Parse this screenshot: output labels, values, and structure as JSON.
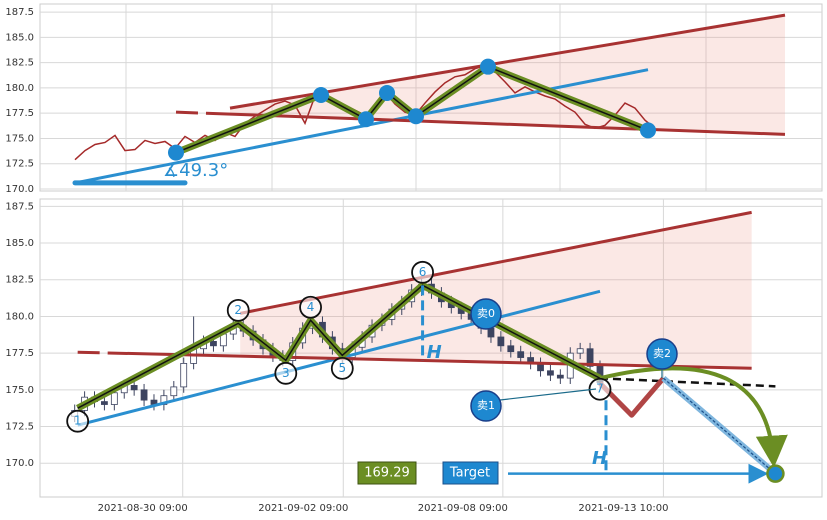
{
  "chart_data": [
    {
      "type": "line",
      "ylim": [
        169.8,
        188.3
      ],
      "yticks": [
        {
          "value": 170,
          "label": "170.0"
        },
        {
          "value": 172.5,
          "label": "172.5"
        },
        {
          "value": 175,
          "label": "175.0"
        },
        {
          "value": 177.5,
          "label": "177.5"
        },
        {
          "value": 180,
          "label": "180.0"
        },
        {
          "value": 182.5,
          "label": "182.5"
        },
        {
          "value": 185,
          "label": "185.0"
        },
        {
          "value": 187.5,
          "label": "187.5"
        }
      ],
      "xlim": [
        -3.5,
        74.7
      ],
      "xticks": [
        5.1,
        19.7,
        34.1,
        48.5,
        63.1
      ],
      "grid": true,
      "color": "#a52a2a",
      "values": [
        172.9,
        173.8,
        174.4,
        174.6,
        175.3,
        173.8,
        173.9,
        174.8,
        174.5,
        174.7,
        174.0,
        175.2,
        174.6,
        175.3,
        174.8,
        175.6,
        175.2,
        176.5,
        177.2,
        177.8,
        178.4,
        178.7,
        178.3,
        176.5,
        179.2,
        179.5,
        178.6,
        178.3,
        177.8,
        177.3,
        178.2,
        179.6,
        178.4,
        177.6,
        177.3,
        178.5,
        179.6,
        180.5,
        181.1,
        181.3,
        181.9,
        182.2,
        181.6,
        180.6,
        179.5,
        180.1,
        179.6,
        179.2,
        178.9,
        178.2,
        177.6,
        176.4,
        176.0,
        176.3,
        177.3,
        178.5,
        178.0,
        176.8,
        176.0
      ],
      "zigzag": [
        [
          10.1,
          173.6
        ],
        [
          24.6,
          179.3
        ],
        [
          29.1,
          176.9
        ],
        [
          31.2,
          179.5
        ],
        [
          34.1,
          177.2
        ],
        [
          41.3,
          182.1
        ],
        [
          57.3,
          175.8
        ]
      ],
      "upper_line": [
        [
          15.5,
          178.0
        ],
        [
          71,
          187.2
        ]
      ],
      "lower_line": [
        [
          10.1,
          177.6
        ],
        [
          71,
          175.4
        ]
      ],
      "trend_line": [
        [
          0,
          170.6
        ],
        [
          57.3,
          181.8
        ]
      ],
      "angle_label": "∡49.3°"
    },
    {
      "type": "candlestick",
      "ylim": [
        167.7,
        188.0
      ],
      "yticks": [
        {
          "value": 170,
          "label": "170.0"
        },
        {
          "value": 172.5,
          "label": "172.5"
        },
        {
          "value": 175,
          "label": "175.0"
        },
        {
          "value": 177.5,
          "label": "177.5"
        },
        {
          "value": 180,
          "label": "180.0"
        },
        {
          "value": 182.5,
          "label": "182.5"
        },
        {
          "value": 185,
          "label": "185.0"
        },
        {
          "value": 187.5,
          "label": "187.5"
        }
      ],
      "xlim": [
        -3.5,
        75.4
      ],
      "xticks": [
        {
          "value": 10.9,
          "label": "2021-08-30 09:00"
        },
        {
          "value": 27.1,
          "label": "2021-09-02 09:00"
        },
        {
          "value": 43.2,
          "label": "2021-09-08 09:00"
        },
        {
          "value": 59.4,
          "label": "2021-09-13 10:00"
        }
      ],
      "grid": true,
      "up_color": "#ffffff",
      "down_color": "#3d4460",
      "open": [
        173.2,
        173.6,
        174.5,
        174.2,
        174.0,
        174.8,
        175.3,
        175.0,
        174.3,
        174.0,
        174.6,
        175.2,
        176.8,
        177.8,
        178.3,
        178.0,
        178.8,
        179.4,
        179.0,
        178.4,
        177.8,
        177.3,
        177.0,
        178.2,
        179.2,
        179.6,
        178.6,
        177.8,
        177.2,
        177.9,
        178.6,
        179.4,
        179.8,
        180.5,
        181.0,
        181.8,
        182.2,
        181.6,
        181.0,
        180.6,
        180.2,
        179.8,
        179.2,
        178.6,
        178.0,
        177.6,
        177.2,
        176.8,
        176.3,
        176.0,
        175.8,
        177.5,
        177.8,
        176.6
      ],
      "high": [
        174.0,
        174.9,
        174.9,
        174.6,
        175.2,
        175.7,
        175.7,
        175.4,
        174.7,
        175.0,
        175.6,
        177.2,
        180.0,
        178.7,
        178.7,
        179.2,
        179.8,
        179.8,
        179.4,
        178.8,
        178.2,
        177.7,
        178.6,
        179.6,
        180.0,
        180.0,
        179.0,
        178.2,
        178.3,
        179.0,
        179.8,
        180.2,
        180.9,
        181.4,
        182.2,
        182.6,
        182.6,
        182.0,
        181.4,
        181.0,
        180.6,
        180.2,
        179.6,
        179.0,
        178.4,
        178.0,
        177.6,
        177.2,
        176.7,
        176.4,
        177.9,
        178.2,
        178.2,
        177.0
      ],
      "low": [
        172.8,
        173.2,
        173.8,
        173.6,
        173.6,
        174.4,
        174.6,
        173.9,
        173.6,
        173.6,
        174.2,
        174.8,
        176.4,
        177.4,
        177.6,
        177.6,
        178.4,
        178.6,
        178.0,
        177.4,
        176.9,
        176.6,
        176.6,
        177.8,
        178.8,
        178.2,
        177.4,
        176.8,
        176.8,
        177.5,
        178.2,
        179.0,
        179.4,
        180.1,
        180.6,
        181.4,
        181.2,
        180.6,
        180.2,
        179.8,
        179.4,
        178.8,
        178.2,
        177.6,
        177.2,
        176.8,
        176.4,
        175.9,
        175.6,
        175.4,
        175.4,
        177.1,
        176.2,
        175.1
      ],
      "close": [
        173.6,
        174.5,
        174.2,
        174.0,
        174.8,
        175.3,
        175.0,
        174.3,
        174.0,
        174.6,
        175.2,
        176.8,
        177.8,
        178.3,
        178.0,
        178.8,
        179.4,
        179.0,
        178.4,
        177.8,
        177.3,
        177.0,
        178.2,
        179.2,
        179.6,
        178.6,
        177.8,
        177.2,
        177.9,
        178.6,
        179.4,
        179.8,
        180.5,
        181.0,
        181.8,
        182.2,
        181.6,
        181.0,
        180.6,
        180.2,
        179.8,
        179.2,
        178.6,
        178.0,
        177.6,
        177.2,
        176.8,
        176.3,
        176.0,
        175.8,
        177.5,
        177.8,
        176.6,
        175.5
      ],
      "zigzag": [
        [
          0.3,
          173.75
        ],
        [
          16.5,
          179.53
        ],
        [
          21.3,
          177.01
        ],
        [
          23.8,
          179.74
        ],
        [
          27.0,
          177.35
        ],
        [
          35.1,
          182.12
        ],
        [
          53.0,
          175.79
        ]
      ],
      "pivot_labels": [
        "1",
        "2",
        "3",
        "4",
        "5",
        "6",
        "7"
      ],
      "upper_line": [
        [
          16.7,
          180.21
        ],
        [
          68.3,
          187.09
        ]
      ],
      "lower_line": [
        [
          0.3,
          177.56
        ],
        [
          68.3,
          176.47
        ]
      ],
      "trend_line": [
        [
          0.3,
          172.59
        ],
        [
          53.0,
          181.71
        ]
      ],
      "extension_line": [
        [
          53.0,
          175.79
        ],
        [
          70.7,
          175.24
        ]
      ],
      "forecast": [
        [
          53.0,
          175.45
        ],
        [
          56.2,
          173.27
        ],
        [
          59.4,
          175.79
        ]
      ],
      "target_x": 70.7,
      "target_value": 169.29,
      "target_label": "Target",
      "height_label": "H",
      "signals": [
        "卖0",
        "卖1",
        "卖2"
      ]
    }
  ]
}
